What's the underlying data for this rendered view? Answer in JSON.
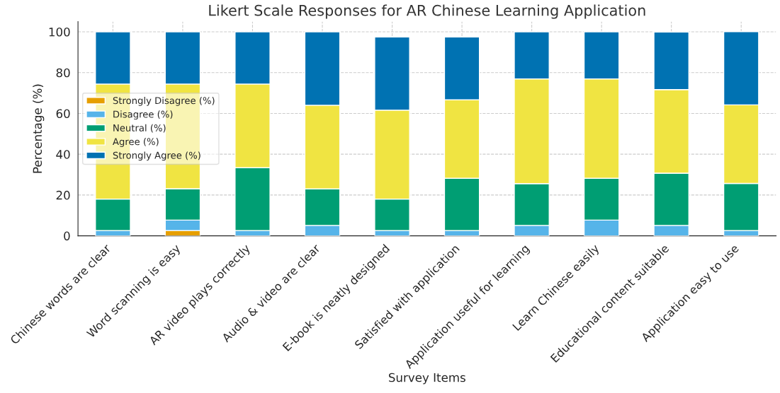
{
  "chart_data": {
    "type": "bar",
    "stacked": true,
    "title": "Likert Scale Responses for AR Chinese Learning Application",
    "xlabel": "Survey Items",
    "ylabel": "Percentage (%)",
    "categories": [
      "Chinese words are clear",
      "Word scanning is easy",
      "AR video plays correctly",
      "Audio & video are clear",
      "E-book is neatly designed",
      "Satisfied with application",
      "Application useful for learning",
      "Learn Chinese easily",
      "Educational content suitable",
      "Application easy to use"
    ],
    "series": [
      {
        "name": "Strongly Disagree (%)",
        "color": "#e69f00",
        "values": [
          0,
          2.6,
          0,
          0,
          0,
          0,
          0,
          0,
          0,
          0
        ]
      },
      {
        "name": "Disagree (%)",
        "color": "#56b4e9",
        "values": [
          2.6,
          5.1,
          2.6,
          5.1,
          2.6,
          2.6,
          5.1,
          7.7,
          5.1,
          2.6
        ]
      },
      {
        "name": "Neutral (%)",
        "color": "#009e73",
        "values": [
          15.4,
          15.4,
          30.8,
          17.9,
          15.4,
          25.6,
          20.5,
          20.5,
          25.6,
          23.1
        ]
      },
      {
        "name": "Agree (%)",
        "color": "#f0e442",
        "values": [
          56.4,
          51.3,
          41.0,
          41.0,
          43.6,
          38.5,
          51.3,
          48.7,
          41.0,
          38.5
        ]
      },
      {
        "name": "Strongly Agree (%)",
        "color": "#0072b2",
        "values": [
          25.6,
          25.6,
          25.6,
          36.0,
          35.9,
          30.8,
          23.1,
          23.1,
          28.2,
          35.9
        ]
      }
    ],
    "ylim": [
      0,
      105
    ],
    "yticks": [
      0,
      20,
      40,
      60,
      80,
      100
    ],
    "grid": true,
    "legend": "center left"
  }
}
